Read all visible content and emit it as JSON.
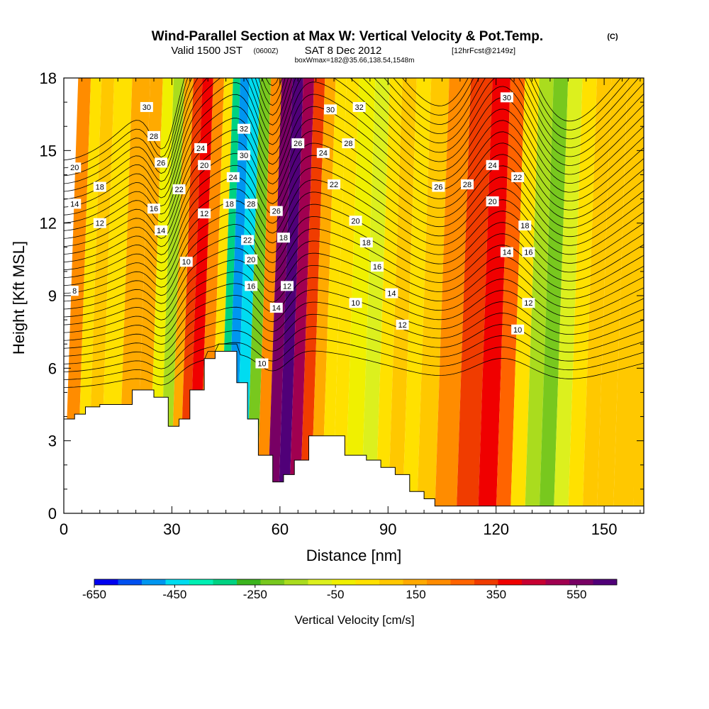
{
  "chart_data": {
    "type": "heatmap",
    "title": "Wind-Parallel Section at Max W: Vertical Velocity & Pot.Temp.",
    "title_mark": "(C)",
    "subtitle": {
      "valid": "Valid 1500 JST",
      "utc": "(0600Z)",
      "date": "SAT 8 Dec 2012",
      "fcst": "[12hrFcst@2149z]"
    },
    "box_info": "boxWmax=182@35.66,138.54,1548m",
    "xlabel": "Distance [nm]",
    "ylabel": "Height [Kft MSL]",
    "xlim": [
      0,
      161
    ],
    "ylim": [
      0,
      18
    ],
    "xticks": [
      "0",
      "30",
      "60",
      "90",
      "120",
      "150"
    ],
    "yticks": [
      "0",
      "3",
      "6",
      "9",
      "12",
      "15",
      "18"
    ],
    "colorbar": {
      "label": "Vertical Velocity [cm/s]",
      "levels": [
        -650,
        -550,
        -450,
        -350,
        -250,
        -150,
        -50,
        50,
        150,
        250,
        350,
        450,
        550,
        650
      ],
      "tick_labels": [
        "-650",
        "-450",
        "-250",
        "-50",
        "150",
        "350",
        "550"
      ],
      "colors": [
        "#0000f0",
        "#0050f0",
        "#0096f0",
        "#00dcf0",
        "#00f0b4",
        "#00d282",
        "#3cb41e",
        "#78c81e",
        "#aadc1e",
        "#dcf01e",
        "#f0f000",
        "#ffe100",
        "#ffc800",
        "#ffaa00",
        "#ff8c00",
        "#ff6400",
        "#f03c00",
        "#f00000",
        "#c80032",
        "#a00050",
        "#780064",
        "#500078"
      ]
    },
    "velocity_field": [
      {
        "x": 2,
        "w": 120
      },
      {
        "x": 5,
        "w": -50
      },
      {
        "x": 8,
        "w": 40
      },
      {
        "x": 12,
        "w": 0
      },
      {
        "x": 18,
        "w": 60
      },
      {
        "x": 22,
        "w": 80
      },
      {
        "x": 25,
        "w": -60
      },
      {
        "x": 28,
        "w": -200
      },
      {
        "x": 31,
        "w": 80
      },
      {
        "x": 33,
        "w": 250
      },
      {
        "x": 36,
        "w": 300
      },
      {
        "x": 39,
        "w": 150
      },
      {
        "x": 42,
        "w": -50
      },
      {
        "x": 44,
        "w": -350
      },
      {
        "x": 46,
        "w": -500
      },
      {
        "x": 49,
        "w": -450
      },
      {
        "x": 52,
        "w": -250
      },
      {
        "x": 55,
        "w": 150
      },
      {
        "x": 58,
        "w": 450
      },
      {
        "x": 61,
        "w": 500
      },
      {
        "x": 64,
        "w": 400
      },
      {
        "x": 67,
        "w": 250
      },
      {
        "x": 70,
        "w": 100
      },
      {
        "x": 73,
        "w": -50
      },
      {
        "x": 76,
        "w": 0
      },
      {
        "x": 80,
        "w": -100
      },
      {
        "x": 85,
        "w": -150
      },
      {
        "x": 88,
        "w": -50
      },
      {
        "x": 92,
        "w": 50
      },
      {
        "x": 96,
        "w": 0
      },
      {
        "x": 100,
        "w": 50
      },
      {
        "x": 106,
        "w": 150
      },
      {
        "x": 112,
        "w": 250
      },
      {
        "x": 118,
        "w": 300
      },
      {
        "x": 122,
        "w": 200
      },
      {
        "x": 126,
        "w": 0
      },
      {
        "x": 130,
        "w": -200
      },
      {
        "x": 134,
        "w": -250
      },
      {
        "x": 138,
        "w": -150
      },
      {
        "x": 142,
        "w": 0
      },
      {
        "x": 146,
        "w": 50
      },
      {
        "x": 150,
        "w": 50
      },
      {
        "x": 155,
        "w": 50
      },
      {
        "x": 161,
        "w": 50
      }
    ],
    "terrain": [
      {
        "x": 0,
        "h": 3.9
      },
      {
        "x": 3,
        "h": 4.1
      },
      {
        "x": 6,
        "h": 4.4
      },
      {
        "x": 10,
        "h": 4.5
      },
      {
        "x": 15,
        "h": 4.5
      },
      {
        "x": 19,
        "h": 5.1
      },
      {
        "x": 25,
        "h": 4.8
      },
      {
        "x": 29,
        "h": 3.6
      },
      {
        "x": 32,
        "h": 3.9
      },
      {
        "x": 35,
        "h": 5.1
      },
      {
        "x": 39,
        "h": 6.4
      },
      {
        "x": 42,
        "h": 6.7
      },
      {
        "x": 48,
        "h": 5.4
      },
      {
        "x": 51,
        "h": 3.9
      },
      {
        "x": 54,
        "h": 2.4
      },
      {
        "x": 58,
        "h": 1.3
      },
      {
        "x": 61,
        "h": 1.6
      },
      {
        "x": 64,
        "h": 2.2
      },
      {
        "x": 68,
        "h": 3.2
      },
      {
        "x": 72,
        "h": 3.2
      },
      {
        "x": 78,
        "h": 2.4
      },
      {
        "x": 84,
        "h": 2.2
      },
      {
        "x": 88,
        "h": 1.9
      },
      {
        "x": 92,
        "h": 1.6
      },
      {
        "x": 96,
        "h": 0.9
      },
      {
        "x": 100,
        "h": 0.6
      },
      {
        "x": 103,
        "h": 0.3
      },
      {
        "x": 161,
        "h": 0.3
      }
    ],
    "theta_contours": {
      "levels": [
        8,
        10,
        12,
        14,
        16,
        18,
        20,
        22,
        24,
        26,
        28,
        30,
        32
      ],
      "labels": [
        {
          "text": "30",
          "x": 23,
          "y": 16.8
        },
        {
          "text": "28",
          "x": 25,
          "y": 15.6
        },
        {
          "text": "26",
          "x": 27,
          "y": 14.5
        },
        {
          "text": "24",
          "x": 38,
          "y": 15.1
        },
        {
          "text": "20",
          "x": 39,
          "y": 14.4
        },
        {
          "text": "22",
          "x": 32,
          "y": 13.4
        },
        {
          "text": "20",
          "x": 3,
          "y": 14.3
        },
        {
          "text": "18",
          "x": 10,
          "y": 13.5
        },
        {
          "text": "14",
          "x": 3,
          "y": 12.8
        },
        {
          "text": "12",
          "x": 10,
          "y": 12.0
        },
        {
          "text": "16",
          "x": 25,
          "y": 12.6
        },
        {
          "text": "14",
          "x": 27,
          "y": 11.7
        },
        {
          "text": "12",
          "x": 39,
          "y": 12.4
        },
        {
          "text": "10",
          "x": 34,
          "y": 10.4
        },
        {
          "text": "8",
          "x": 3,
          "y": 9.2
        },
        {
          "text": "32",
          "x": 50,
          "y": 15.9
        },
        {
          "text": "30",
          "x": 50,
          "y": 14.8
        },
        {
          "text": "24",
          "x": 47,
          "y": 13.9
        },
        {
          "text": "18",
          "x": 46,
          "y": 12.8
        },
        {
          "text": "28",
          "x": 52,
          "y": 12.8
        },
        {
          "text": "22",
          "x": 51,
          "y": 11.3
        },
        {
          "text": "20",
          "x": 52,
          "y": 10.5
        },
        {
          "text": "16",
          "x": 52,
          "y": 9.4
        },
        {
          "text": "10",
          "x": 55,
          "y": 6.2
        },
        {
          "text": "26",
          "x": 59,
          "y": 12.5
        },
        {
          "text": "18",
          "x": 61,
          "y": 11.4
        },
        {
          "text": "12",
          "x": 62,
          "y": 9.4
        },
        {
          "text": "14",
          "x": 59,
          "y": 8.5
        },
        {
          "text": "26",
          "x": 65,
          "y": 15.3
        },
        {
          "text": "30",
          "x": 74,
          "y": 16.7
        },
        {
          "text": "32",
          "x": 82,
          "y": 16.8
        },
        {
          "text": "24",
          "x": 72,
          "y": 14.9
        },
        {
          "text": "28",
          "x": 79,
          "y": 15.3
        },
        {
          "text": "22",
          "x": 75,
          "y": 13.6
        },
        {
          "text": "20",
          "x": 81,
          "y": 12.1
        },
        {
          "text": "18",
          "x": 84,
          "y": 11.2
        },
        {
          "text": "16",
          "x": 87,
          "y": 10.2
        },
        {
          "text": "14",
          "x": 91,
          "y": 9.1
        },
        {
          "text": "12",
          "x": 94,
          "y": 7.8
        },
        {
          "text": "10",
          "x": 81,
          "y": 8.7
        },
        {
          "text": "26",
          "x": 104,
          "y": 13.5
        },
        {
          "text": "28",
          "x": 112,
          "y": 13.6
        },
        {
          "text": "24",
          "x": 119,
          "y": 14.4
        },
        {
          "text": "30",
          "x": 123,
          "y": 17.2
        },
        {
          "text": "22",
          "x": 126,
          "y": 13.9
        },
        {
          "text": "20",
          "x": 119,
          "y": 12.9
        },
        {
          "text": "18",
          "x": 128,
          "y": 11.9
        },
        {
          "text": "14",
          "x": 123,
          "y": 10.8
        },
        {
          "text": "16",
          "x": 129,
          "y": 10.8
        },
        {
          "text": "12",
          "x": 129,
          "y": 8.7
        },
        {
          "text": "10",
          "x": 126,
          "y": 7.6
        }
      ]
    }
  }
}
